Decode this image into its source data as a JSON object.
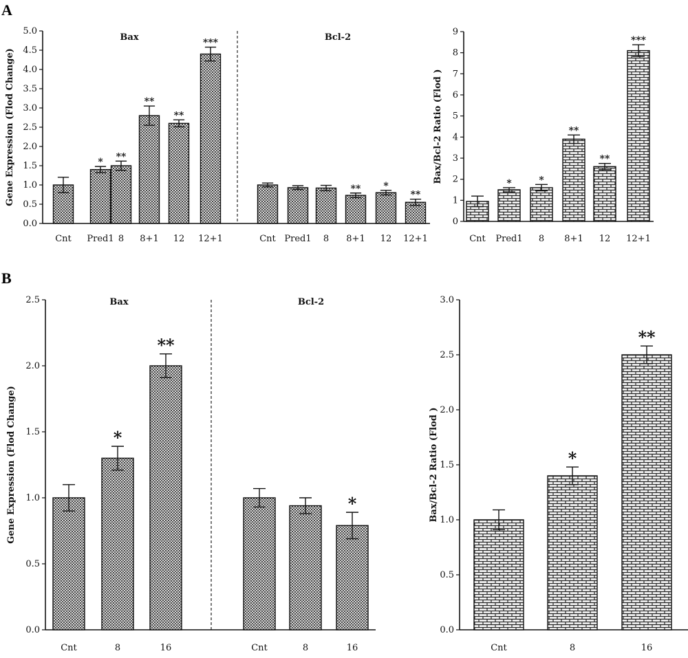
{
  "panels": {
    "a": "A",
    "b": "B"
  },
  "chart_data": [
    {
      "id": "A-expression",
      "type": "bar",
      "ylabel": "Gene Expression (Flod Change)",
      "ylim": [
        0,
        5.0
      ],
      "yticks": [
        "0.0",
        "0.5",
        "1.0",
        "1.5",
        "2.0",
        "2.5",
        "3.0",
        "3.5",
        "4.0",
        "4.5",
        "5.0"
      ],
      "groups": [
        {
          "title": "Bax",
          "categories": [
            "Cnt",
            "Pred1",
            "8",
            "8+1",
            "12",
            "12+1"
          ],
          "values": [
            1.0,
            1.4,
            1.5,
            2.8,
            2.6,
            4.4
          ],
          "errors": [
            0.2,
            0.08,
            0.12,
            0.25,
            0.09,
            0.18
          ],
          "significance": [
            "",
            "*",
            "**",
            "**",
            "**",
            "***"
          ]
        },
        {
          "title": "Bcl-2",
          "categories": [
            "Cnt",
            "Pred1",
            "8",
            "8+1",
            "12",
            "12+1"
          ],
          "values": [
            1.0,
            0.93,
            0.92,
            0.73,
            0.8,
            0.55
          ],
          "errors": [
            0.05,
            0.05,
            0.07,
            0.06,
            0.06,
            0.08
          ],
          "significance": [
            "",
            "",
            "",
            "**",
            "*",
            "**"
          ]
        }
      ],
      "pattern": "dots",
      "group_divider": "dashed"
    },
    {
      "id": "A-ratio",
      "type": "bar",
      "ylabel": "Bax/Bcl-2 Ratio (Flod )",
      "ylim": [
        0,
        9
      ],
      "yticks": [
        "0",
        "1",
        "2",
        "3",
        "4",
        "5",
        "6",
        "7",
        "8",
        "9"
      ],
      "categories": [
        "Cnt",
        "Pred1",
        "8",
        "8+1",
        "12",
        "12+1"
      ],
      "values": [
        0.95,
        1.5,
        1.6,
        3.9,
        2.6,
        8.1
      ],
      "errors": [
        0.25,
        0.1,
        0.15,
        0.2,
        0.15,
        0.28
      ],
      "significance": [
        "",
        "*",
        "*",
        "**",
        "**",
        "***"
      ],
      "pattern": "bricks"
    },
    {
      "id": "B-expression",
      "type": "bar",
      "ylabel": "Gene Expression (Flod Change)",
      "ylim": [
        0,
        2.5
      ],
      "yticks": [
        "0.0",
        "0.5",
        "1.0",
        "1.5",
        "2.0",
        "2.5"
      ],
      "groups": [
        {
          "title": "Bax",
          "categories": [
            "Cnt",
            "8",
            "16"
          ],
          "values": [
            1.0,
            1.3,
            2.0
          ],
          "errors": [
            0.1,
            0.09,
            0.09
          ],
          "significance": [
            "",
            "*",
            "**"
          ]
        },
        {
          "title": "Bcl-2",
          "categories": [
            "Cnt",
            "8",
            "16"
          ],
          "values": [
            1.0,
            0.94,
            0.79
          ],
          "errors": [
            0.07,
            0.06,
            0.1
          ],
          "significance": [
            "",
            "",
            "*"
          ]
        }
      ],
      "pattern": "dots",
      "group_divider": "dashed"
    },
    {
      "id": "B-ratio",
      "type": "bar",
      "ylabel": "Bax/Bcl-2 Ratio (Flod )",
      "ylim": [
        0,
        3.0
      ],
      "yticks": [
        "0.0",
        "0.5",
        "1.0",
        "1.5",
        "2.0",
        "2.5",
        "3.0"
      ],
      "categories": [
        "Cnt",
        "8",
        "16"
      ],
      "values": [
        1.0,
        1.4,
        2.5
      ],
      "errors": [
        0.09,
        0.08,
        0.08
      ],
      "significance": [
        "",
        "*",
        "**"
      ],
      "pattern": "bricks"
    }
  ]
}
